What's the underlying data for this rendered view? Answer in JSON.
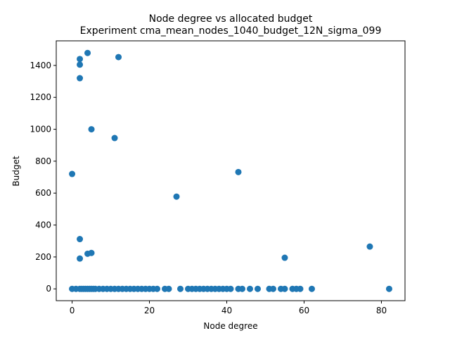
{
  "chart_data": {
    "type": "scatter",
    "title": "Node degree vs allocated budget",
    "subtitle": "Experiment cma_mean_nodes_1040_budget_12N_sigma_099",
    "xlabel": "Node degree",
    "ylabel": "Budget",
    "xlim": [
      -4.1,
      86.1
    ],
    "ylim": [
      -74,
      1554
    ],
    "xticks": [
      0,
      20,
      40,
      60,
      80
    ],
    "yticks": [
      0,
      200,
      400,
      600,
      800,
      1000,
      1200,
      1400
    ],
    "grid": false,
    "marker_color": "#1f77b4",
    "series": [
      {
        "points": [
          [
            0,
            720
          ],
          [
            2,
            1440
          ],
          [
            2,
            1405
          ],
          [
            2,
            1320
          ],
          [
            4,
            1478
          ],
          [
            12,
            1452
          ],
          [
            5,
            1000
          ],
          [
            11,
            945
          ],
          [
            43,
            732
          ],
          [
            27,
            578
          ],
          [
            2,
            312
          ],
          [
            4,
            220
          ],
          [
            5,
            225
          ],
          [
            2,
            190
          ],
          [
            55,
            195
          ],
          [
            77,
            265
          ],
          [
            0,
            0
          ],
          [
            1,
            0
          ],
          [
            2,
            0
          ],
          [
            2.5,
            0
          ],
          [
            3,
            0
          ],
          [
            3.5,
            0
          ],
          [
            4,
            0
          ],
          [
            4.5,
            0
          ],
          [
            5,
            0
          ],
          [
            5.5,
            0
          ],
          [
            6,
            0
          ],
          [
            7,
            0
          ],
          [
            8,
            0
          ],
          [
            9,
            0
          ],
          [
            10,
            0
          ],
          [
            11,
            0
          ],
          [
            12,
            0
          ],
          [
            13,
            0
          ],
          [
            14,
            0
          ],
          [
            15,
            0
          ],
          [
            16,
            0
          ],
          [
            17,
            0
          ],
          [
            18,
            0
          ],
          [
            19,
            0
          ],
          [
            20,
            0
          ],
          [
            21,
            0
          ],
          [
            22,
            0
          ],
          [
            24,
            0
          ],
          [
            25,
            0
          ],
          [
            28,
            0
          ],
          [
            30,
            0
          ],
          [
            31,
            0
          ],
          [
            32,
            0
          ],
          [
            33,
            0
          ],
          [
            34,
            0
          ],
          [
            35,
            0
          ],
          [
            36,
            0
          ],
          [
            37,
            0
          ],
          [
            38,
            0
          ],
          [
            39,
            0
          ],
          [
            40,
            0
          ],
          [
            41,
            0
          ],
          [
            43,
            0
          ],
          [
            44,
            0
          ],
          [
            46,
            0
          ],
          [
            48,
            0
          ],
          [
            51,
            0
          ],
          [
            52,
            0
          ],
          [
            54,
            0
          ],
          [
            55,
            0
          ],
          [
            57,
            0
          ],
          [
            58,
            0
          ],
          [
            59,
            0
          ],
          [
            62,
            0
          ],
          [
            82,
            0
          ]
        ]
      }
    ]
  }
}
